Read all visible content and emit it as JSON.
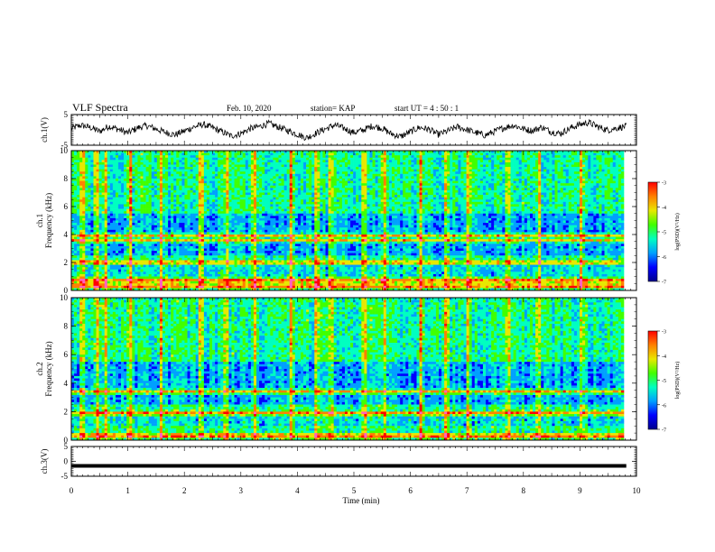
{
  "header": {
    "title": "VLF Spectra",
    "date": "Feb. 10, 2020",
    "station": "station= KAP",
    "start": "start  UT =  4 : 50 : 1"
  },
  "colors": {
    "trace": "#000000",
    "colormap": [
      "#00008c",
      "#0000ff",
      "#00a0ff",
      "#00ffc0",
      "#40ff00",
      "#e8e800",
      "#ff8000",
      "#ff0000",
      "#ff60c0"
    ]
  },
  "chart_data": [
    {
      "type": "line",
      "panel": "ch1-waveform",
      "ylabel": "ch.1(V)",
      "ylim": [
        -5,
        5
      ],
      "yticks": [
        "5",
        "-5"
      ],
      "x_range": [
        0,
        9.82
      ],
      "description_of_values": "waveform, amplitude roughly -3 to +3 V",
      "values": [
        0.5,
        1.5,
        0.8,
        -0.5,
        1.2,
        0.2,
        -1.0,
        0.6,
        1.4,
        0.3,
        -0.8,
        -1.6,
        -0.4,
        0.9,
        1.8,
        0.7,
        -0.6,
        -2.0,
        -1.2,
        0.4,
        1.1,
        2.1,
        0.9,
        -0.2,
        -1.4,
        -2.6,
        -1.1,
        0.3,
        1.6,
        0.5,
        -0.9,
        -0.1,
        1.3,
        0.6,
        -1.3,
        -2.2,
        -0.7,
        0.8,
        0.2,
        -1.5,
        -0.4,
        1.0,
        0.1,
        -0.9,
        -1.8,
        -0.5,
        0.7,
        1.5,
        0.4,
        -0.3,
        0.9,
        -0.6,
        -1.2,
        0.5,
        1.7,
        2.4,
        1.0,
        -0.1,
        0.6,
        1.2
      ]
    },
    {
      "type": "heatmap",
      "panel": "ch1-spectrogram",
      "ylabel": "ch.1\nFrequency (kHz)",
      "ylim": [
        0,
        10
      ],
      "yticks": [
        "0",
        "2",
        "4",
        "6",
        "8",
        "10"
      ],
      "colorbar": {
        "label": "log(PSD)(V²/Hz)",
        "range": [
          -7,
          -3
        ],
        "ticks": [
          "-3",
          "-4",
          "-5",
          "-6",
          "-7"
        ]
      },
      "strong_bands_khz": [
        0.3,
        0.7,
        2.0,
        3.6,
        3.9
      ],
      "intense_times_min": [
        0.2,
        0.45,
        0.6,
        1.05,
        1.6,
        2.3,
        2.75,
        3.25,
        3.9,
        4.35,
        4.6,
        5.2,
        5.55,
        6.2,
        6.65,
        7.05,
        7.75,
        8.3,
        9.05
      ]
    },
    {
      "type": "heatmap",
      "panel": "ch2-spectrogram",
      "ylabel": "ch.2\nFrequency (kHz)",
      "ylim": [
        0,
        10
      ],
      "yticks": [
        "0",
        "2",
        "4",
        "6",
        "8",
        "10"
      ],
      "colorbar": {
        "label": "log(PSD)(V²/Hz)",
        "range": [
          -7,
          -3
        ],
        "ticks": [
          "-3",
          "-4",
          "-5",
          "-6",
          "-7"
        ]
      },
      "strong_bands_khz": [
        0.3,
        1.9,
        3.4
      ],
      "intense_times_min": [
        0.2,
        0.45,
        0.6,
        1.05,
        1.6,
        2.3,
        2.75,
        3.25,
        3.9,
        4.35,
        4.6,
        5.2,
        5.55,
        6.2,
        6.65,
        7.05,
        7.75,
        8.3,
        9.05
      ]
    },
    {
      "type": "line",
      "panel": "ch3-waveform",
      "ylabel": "ch.3(V)",
      "ylim": [
        -5,
        5
      ],
      "yticks": [
        "5",
        "0",
        "-5"
      ],
      "values": [
        -1.5,
        -1.5
      ]
    }
  ],
  "x_axis": {
    "xlabel": "Time (min)",
    "xlim": [
      0,
      10
    ],
    "ticks": [
      "0",
      "1",
      "2",
      "3",
      "4",
      "5",
      "6",
      "7",
      "8",
      "9",
      "10"
    ]
  }
}
